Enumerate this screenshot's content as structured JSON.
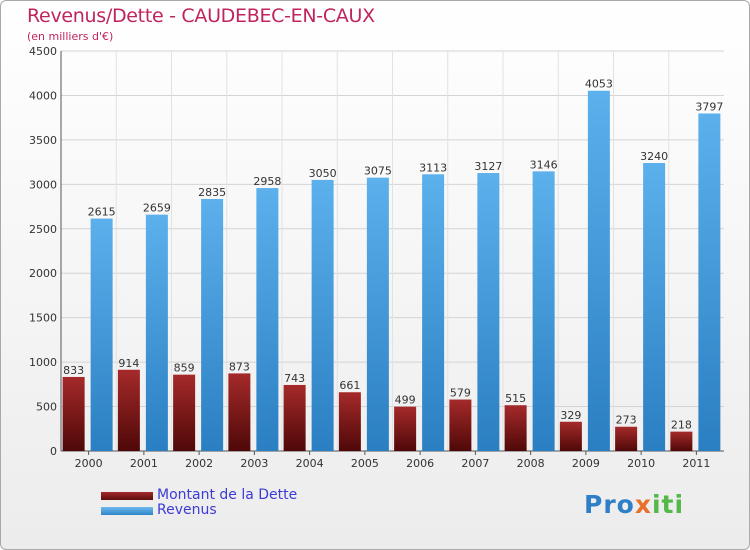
{
  "chart_data": {
    "type": "bar",
    "title": "Revenus/Dette - CAUDEBEC-EN-CAUX",
    "subtitle": "(en milliers d'€)",
    "categories": [
      "2000",
      "2001",
      "2002",
      "2003",
      "2004",
      "2005",
      "2006",
      "2007",
      "2008",
      "2009",
      "2010",
      "2011"
    ],
    "series": [
      {
        "name": "Montant de la Dette",
        "color": "#8b1a1a",
        "values": [
          833,
          914,
          859,
          873,
          743,
          661,
          499,
          579,
          515,
          329,
          273,
          218
        ]
      },
      {
        "name": "Revenus",
        "color": "#4aa6e6",
        "values": [
          2615,
          2659,
          2835,
          2958,
          3050,
          3075,
          3113,
          3127,
          3146,
          4053,
          3240,
          3797
        ]
      }
    ],
    "ylim": [
      0,
      4500
    ],
    "yticks": [
      0,
      500,
      1000,
      1500,
      2000,
      2500,
      3000,
      3500,
      4000,
      4500
    ],
    "grid": true,
    "legend_position": "bottom-left"
  },
  "legend": {
    "debt_label": "Montant de la Dette",
    "revenue_label": "Revenus"
  },
  "logo": {
    "part1": "Pro",
    "part2": "x",
    "part3": "iti"
  }
}
